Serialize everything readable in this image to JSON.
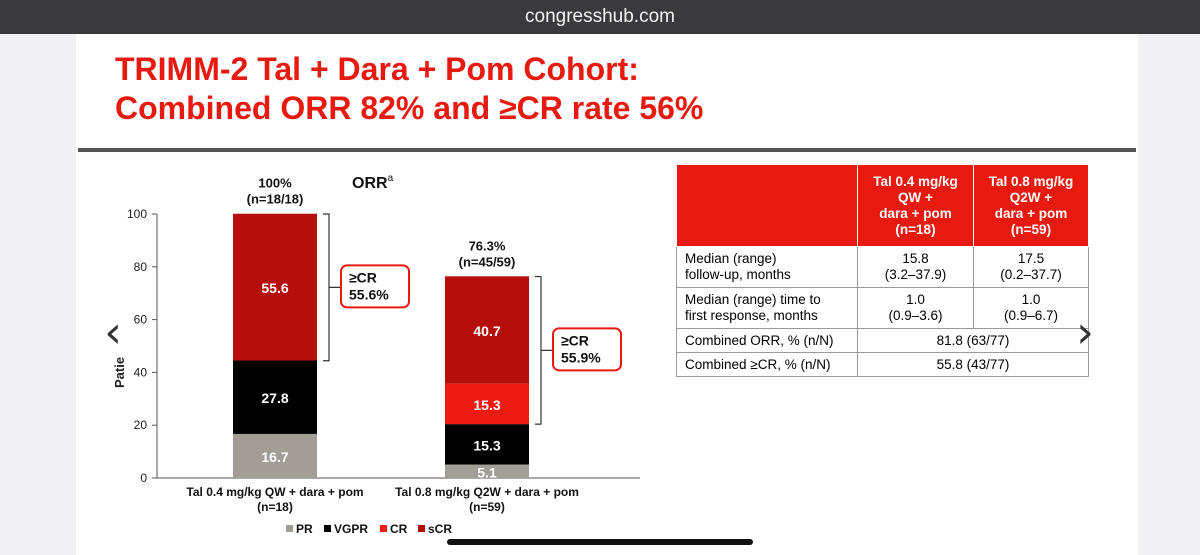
{
  "browser": {
    "url": "congresshub.com"
  },
  "slide": {
    "title_line1": "TRIMM-2 Tal + Dara + Pom Cohort:",
    "title_line2": "Combined ORR 82% and ≥CR rate 56%"
  },
  "colors": {
    "accent": "#e8190f",
    "PR": "#a39d98",
    "VGPR": "#000000",
    "CR": "#ee1c10",
    "sCR": "#b40f0a"
  },
  "chart_data": {
    "type": "bar",
    "stacked": true,
    "title": "ORR",
    "title_superscript": "a",
    "ylabel": "Patie",
    "ylim": [
      0,
      100
    ],
    "yticks": [
      "0",
      "20",
      "40",
      "60",
      "80",
      "100"
    ],
    "categories": [
      {
        "line1": "Tal 0.4 mg/kg QW + dara + pom",
        "line2": "(n=18)"
      },
      {
        "line1": "Tal 0.8 mg/kg Q2W + dara + pom",
        "line2": "(n=59)"
      }
    ],
    "series": [
      {
        "name": "PR",
        "values": [
          16.7,
          5.1
        ],
        "labels": [
          "16.7",
          "5.1"
        ]
      },
      {
        "name": "VGPR",
        "values": [
          27.8,
          15.3
        ],
        "labels": [
          "27.8",
          "15.3"
        ]
      },
      {
        "name": "CR",
        "values": [
          0,
          15.3
        ],
        "labels": [
          "",
          "15.3"
        ]
      },
      {
        "name": "sCR",
        "values": [
          55.6,
          40.7
        ],
        "labels": [
          "55.6",
          "40.7"
        ]
      }
    ],
    "totals": [
      {
        "pct": "100%",
        "n": "(n=18/18)"
      },
      {
        "pct": "76.3%",
        "n": "(n=45/59)"
      }
    ],
    "cr_brackets": [
      {
        "label": "≥CR",
        "value": "55.6%",
        "from": 44.4,
        "to": 100
      },
      {
        "label": "≥CR",
        "value": "55.9%",
        "from": 20.4,
        "to": 76.3
      }
    ],
    "legend_position": "bottom"
  },
  "table": {
    "header": [
      "",
      "Tal 0.4 mg/kg QW + dara + pom (n=18)",
      "Tal 0.8 mg/kg Q2W + dara + pom (n=59)"
    ],
    "header_lines": [
      [
        "Tal 0.4 mg/kg",
        "QW +",
        "dara + pom",
        "(n=18)"
      ],
      [
        "Tal 0.8 mg/kg",
        "Q2W +",
        "dara + pom",
        "(n=59)"
      ]
    ],
    "rows": [
      {
        "label": [
          "Median (range)",
          "follow-up, months"
        ],
        "c1": [
          "15.8",
          "(3.2–37.9)"
        ],
        "c2": [
          "17.5",
          "(0.2–37.7)"
        ]
      },
      {
        "label": [
          "Median (range) time to",
          "first response, months"
        ],
        "c1": [
          "1.0",
          "(0.9–3.6)"
        ],
        "c2": [
          "1.0",
          "(0.9–6.7)"
        ]
      }
    ],
    "combined_rows": [
      {
        "label": "Combined ORR, % (n/N)",
        "value": "81.8 (63/77)"
      },
      {
        "label": "Combined ≥CR, % (n/N)",
        "value": "55.8 (43/77)"
      }
    ]
  },
  "nav": {
    "prev_icon": "chevron-left-icon",
    "next_icon": "chevron-right-icon"
  }
}
